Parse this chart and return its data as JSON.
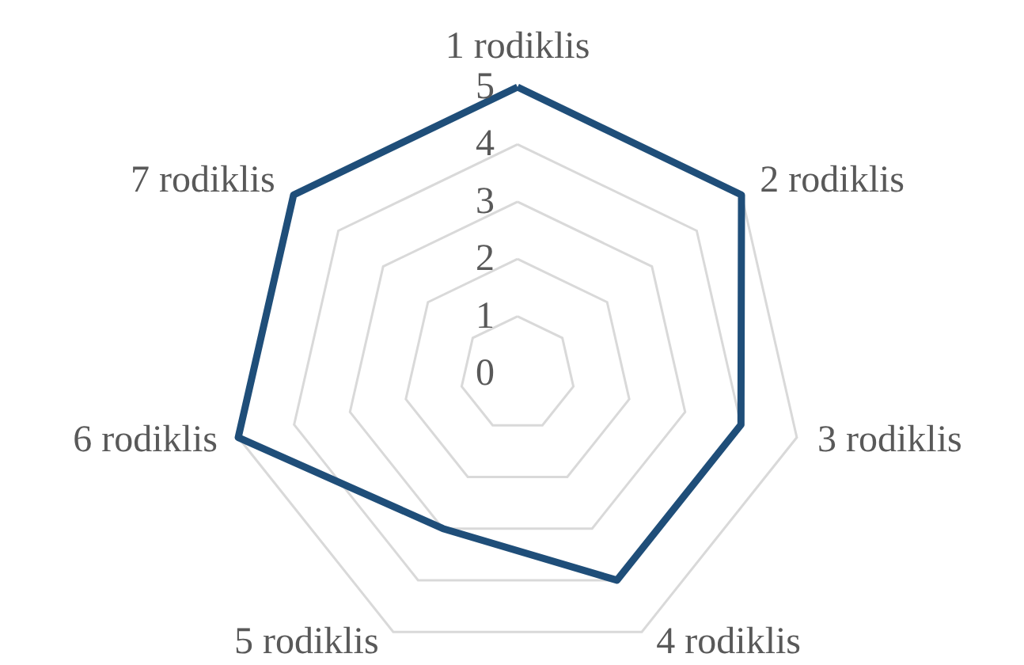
{
  "chart_data": {
    "type": "radar",
    "categories": [
      "1 rodiklis",
      "2 rodiklis",
      "3 rodiklis",
      "4 rodiklis",
      "5 rodiklis",
      "6 rodiklis",
      "7 rodiklis"
    ],
    "series": [
      {
        "color": "#1f4e79",
        "values": [
          5,
          5,
          4,
          4,
          3,
          5,
          5
        ]
      }
    ],
    "ylim": [
      0,
      5
    ],
    "yticks": [
      0,
      1,
      2,
      3,
      4,
      5
    ],
    "grid": true
  }
}
